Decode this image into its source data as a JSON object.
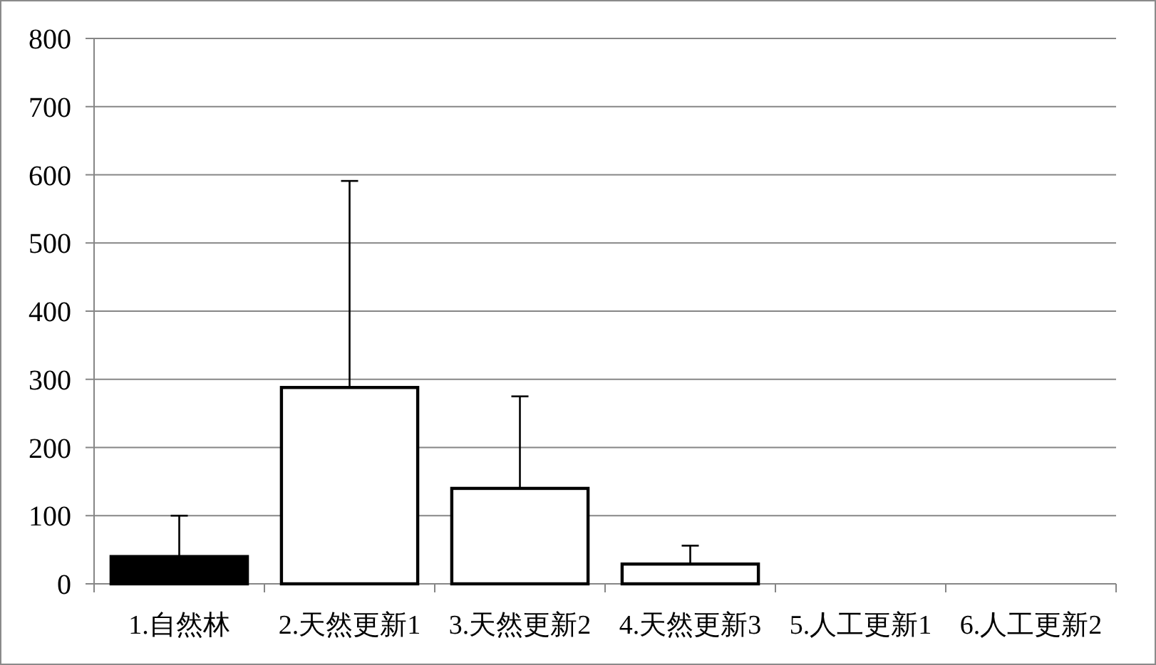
{
  "chart_data": {
    "type": "bar",
    "categories": [
      "1.自然林",
      "2.天然更新1",
      "3.天然更新2",
      "4.天然更新3",
      "5.人工更新1",
      "6.人工更新2"
    ],
    "values": [
      40,
      288,
      140,
      29,
      null,
      null
    ],
    "colors": [
      "#000000",
      "#ffffff",
      "#ffffff",
      "#ffffff",
      null,
      null
    ],
    "errors": [
      [
        40,
        100
      ],
      [
        288,
        591
      ],
      [
        140,
        275
      ],
      [
        29,
        56
      ],
      null,
      null
    ],
    "ylim": [
      0,
      800
    ],
    "yticks": [
      0,
      100,
      200,
      300,
      400,
      500,
      600,
      700,
      800
    ],
    "grid": "y"
  }
}
